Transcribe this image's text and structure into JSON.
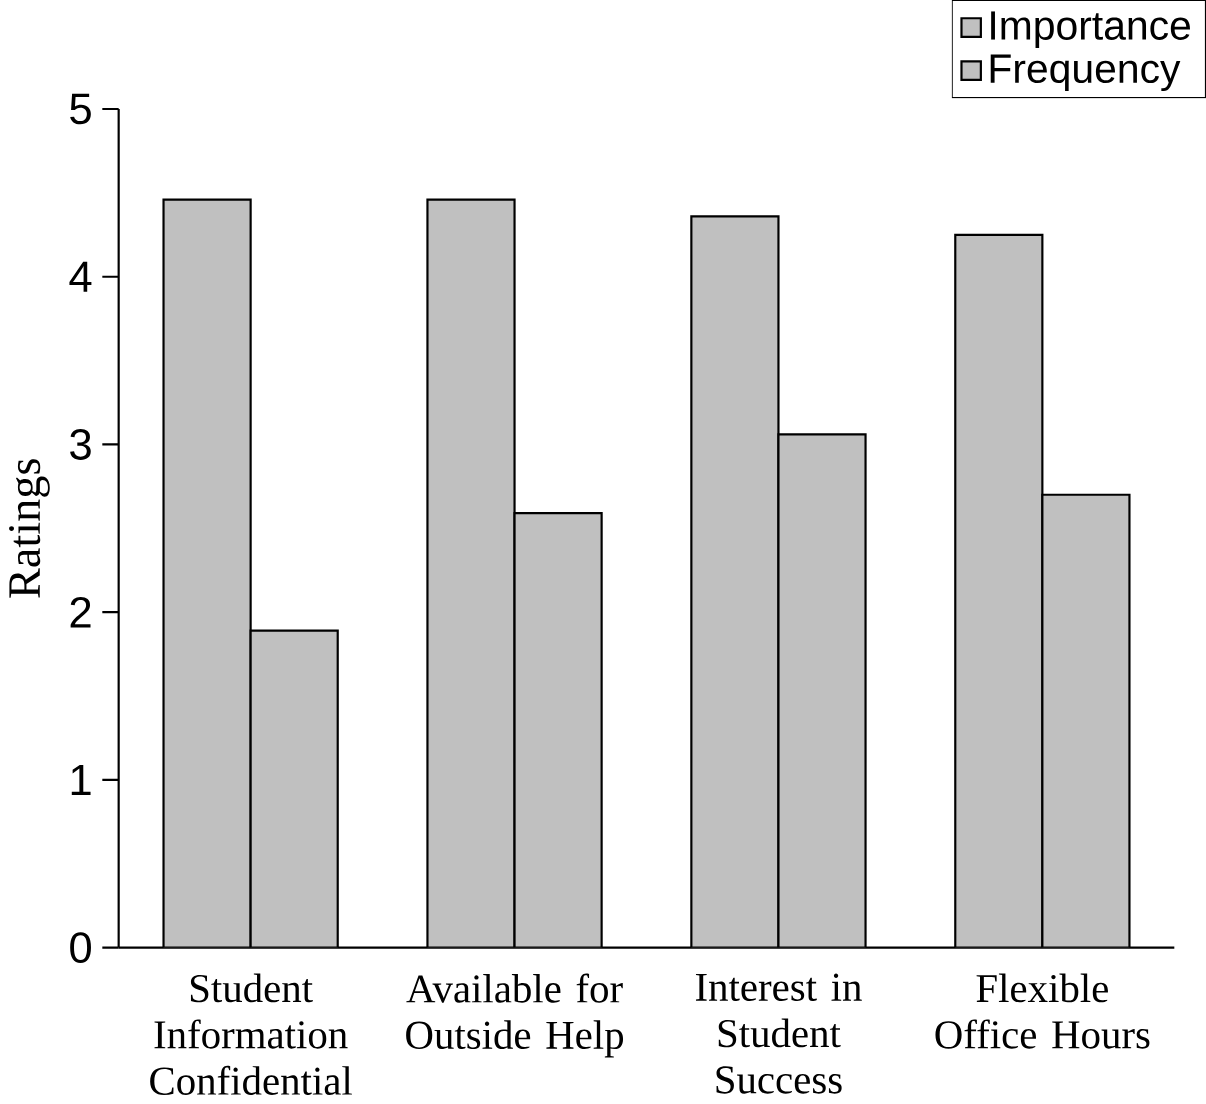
{
  "chart_data": {
    "type": "bar",
    "ylabel": "Ratings",
    "categories": [
      "Student Information Confidential",
      "Available for Outside Help",
      "Interest in Student Success",
      "Flexible Office Hours"
    ],
    "series": [
      {
        "name": "Importance",
        "color": "#c0c0c0",
        "values": [
          4.46,
          4.46,
          4.36,
          4.25
        ]
      },
      {
        "name": "Frequency",
        "color": "#c0c0c0",
        "values": [
          1.89,
          2.59,
          3.06,
          2.7
        ]
      }
    ],
    "ylim": [
      0,
      5
    ],
    "yticks": [
      0,
      1,
      2,
      3,
      4,
      5
    ],
    "grid": false,
    "legend": "top right"
  }
}
